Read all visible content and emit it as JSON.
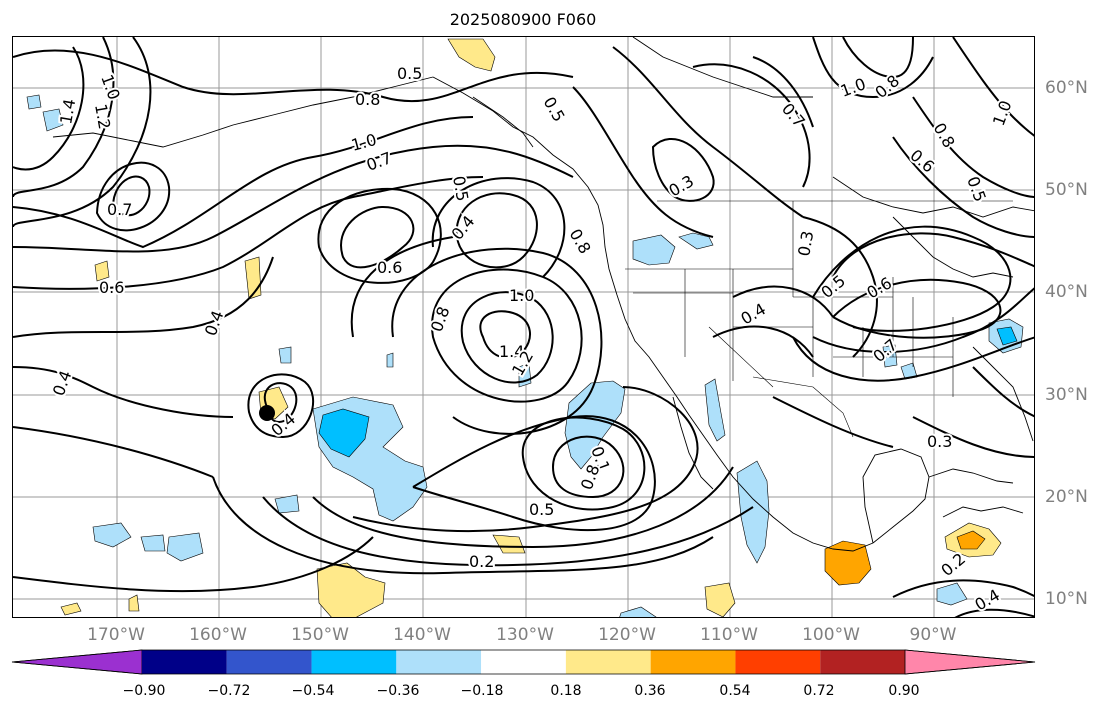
{
  "title": "2025080900 F060",
  "lon_labels": [
    "170°W",
    "160°W",
    "150°W",
    "140°W",
    "130°W",
    "120°W",
    "110°W",
    "100°W",
    "90°W"
  ],
  "lat_labels": [
    "60°N",
    "50°N",
    "40°N",
    "30°N",
    "20°N",
    "10°N"
  ],
  "colorbar": {
    "ticks": [
      "−0.90",
      "−0.72",
      "−0.54",
      "−0.36",
      "−0.18",
      "0.18",
      "0.36",
      "0.54",
      "0.72",
      "0.90"
    ],
    "colors": [
      "#9b30d0",
      "#000088",
      "#3355cc",
      "#00bfff",
      "#aee0fa",
      "#ffffff",
      "#ffe98a",
      "#ffa500",
      "#ff3f00",
      "#b22222",
      "#ff86aa"
    ]
  },
  "contour_labels": [
    "1.0",
    "1.4",
    "1.2",
    "0.5",
    "0.8",
    "1.0",
    "0.7",
    "0.6",
    "0.5",
    "0.4",
    "0.7",
    "0.6",
    "0.4",
    "0.4",
    "0.4",
    "0.8",
    "1.0",
    "1.4",
    "1.2",
    "0.8",
    "0.5",
    "0.2",
    "0.1",
    "0.8",
    "0.5",
    "0.3",
    "0.4",
    "0.5",
    "0.6",
    "0.3",
    "0.7",
    "0.3",
    "1.0",
    "0.8",
    "0.7",
    "0.6",
    "0.8",
    "1.0",
    "0.5",
    "0.2",
    "0.4"
  ]
}
